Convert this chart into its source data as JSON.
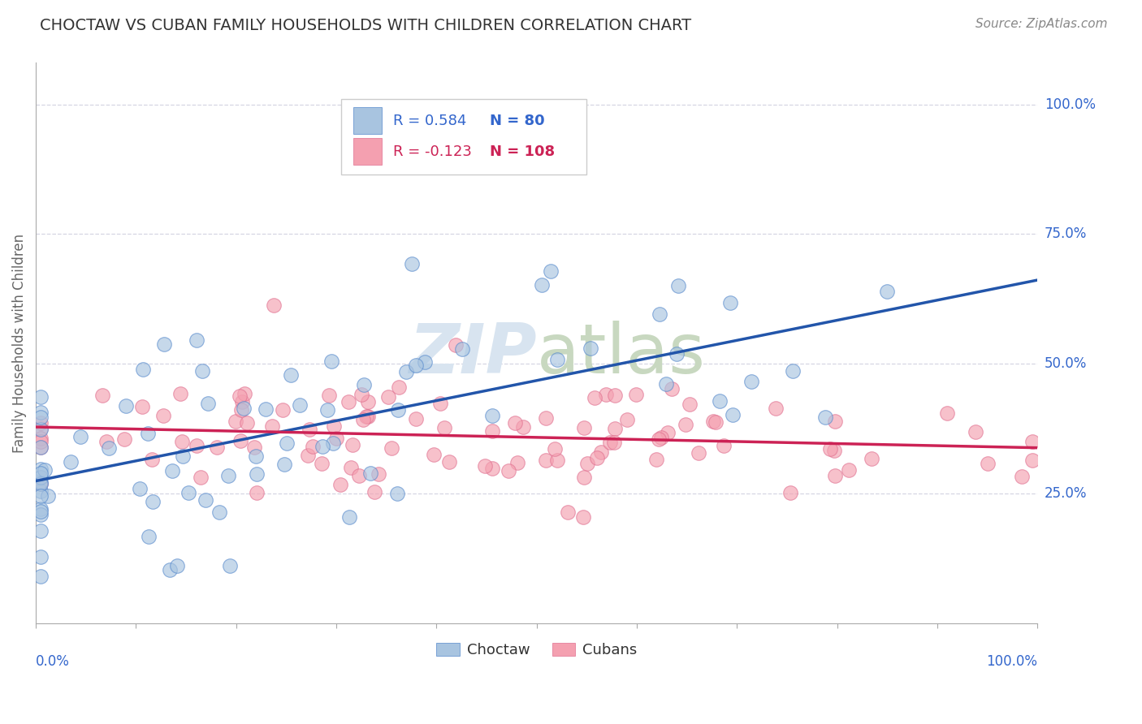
{
  "title": "CHOCTAW VS CUBAN FAMILY HOUSEHOLDS WITH CHILDREN CORRELATION CHART",
  "source": "Source: ZipAtlas.com",
  "ylabel": "Family Households with Children",
  "y_tick_labels": [
    "25.0%",
    "50.0%",
    "75.0%",
    "100.0%"
  ],
  "y_tick_positions": [
    0.25,
    0.5,
    0.75,
    1.0
  ],
  "choctaw_color": "#A8C4E0",
  "cuban_color": "#F4A0B0",
  "choctaw_edge_color": "#5588CC",
  "cuban_edge_color": "#E07090",
  "choctaw_line_color": "#2255AA",
  "cuban_line_color": "#CC2255",
  "choctaw_R": 0.584,
  "choctaw_N": 80,
  "cuban_R": -0.123,
  "cuban_N": 108,
  "legend_label_color_blue": "#3366CC",
  "legend_label_color_pink": "#CC2255",
  "axis_label_color": "#3366CC",
  "background_color": "#FFFFFF",
  "grid_color": "#CCCCDD",
  "title_color": "#333333",
  "source_color": "#888888",
  "scatter_size": 160,
  "scatter_alpha": 0.65,
  "line_width": 2.5,
  "title_fontsize": 14,
  "source_fontsize": 11,
  "ylabel_fontsize": 12,
  "tick_label_fontsize": 12,
  "legend_fontsize": 13
}
